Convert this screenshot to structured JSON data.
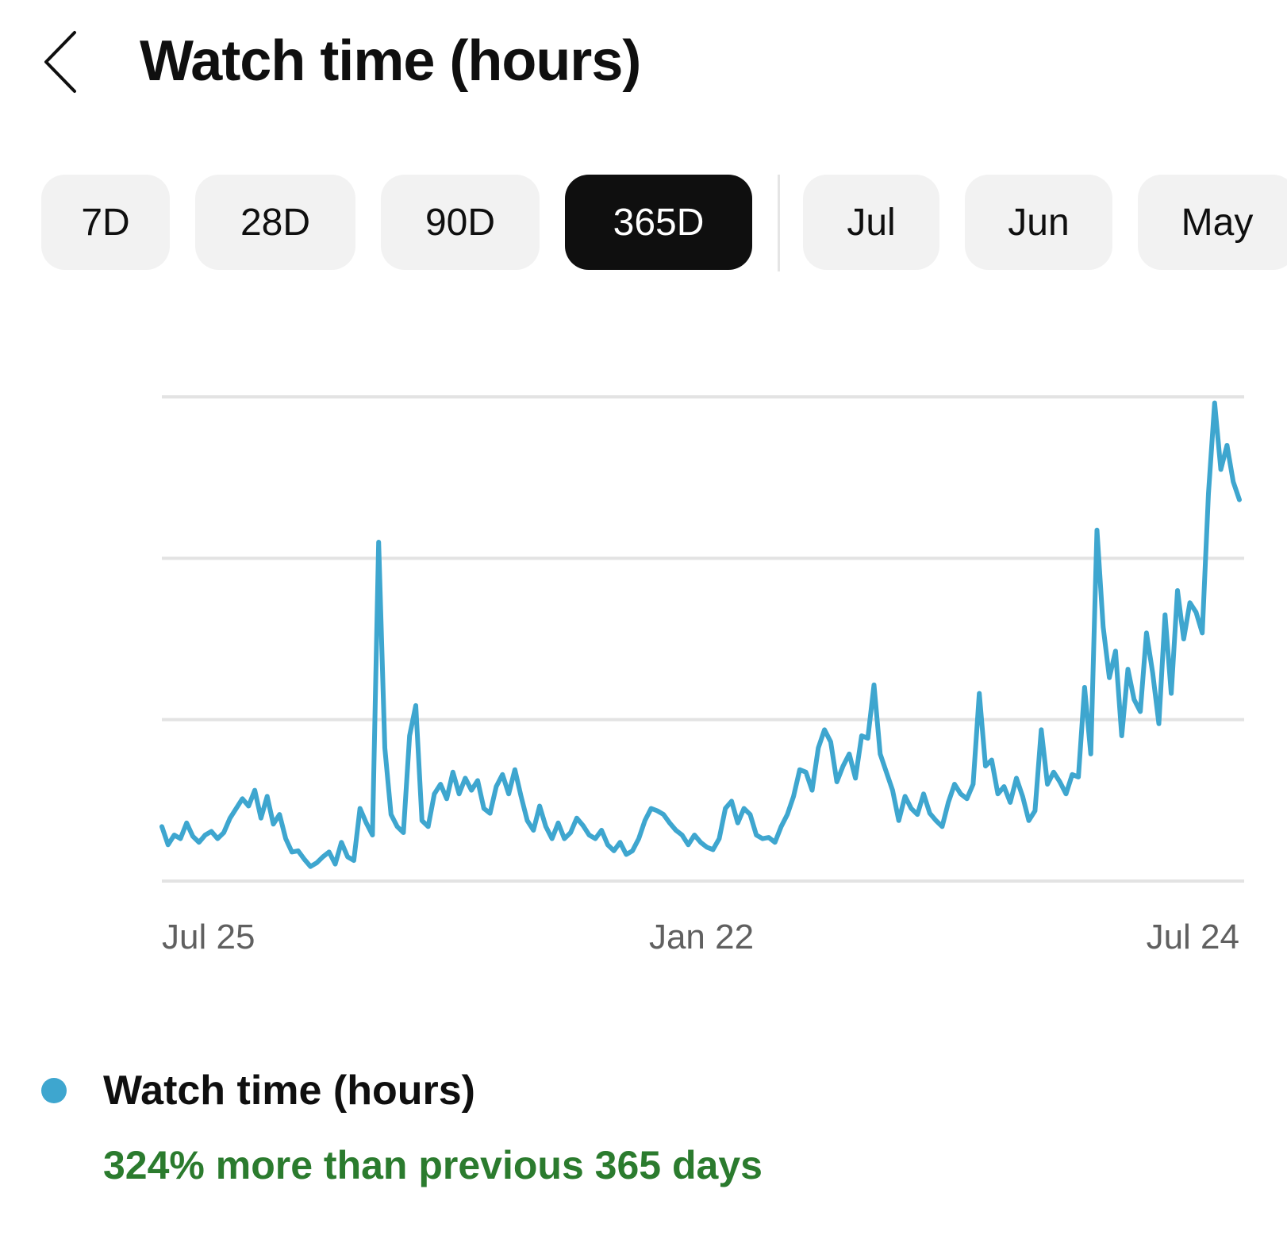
{
  "header": {
    "back_icon": "chevron-left-icon",
    "title": "Watch time (hours)"
  },
  "ranges": {
    "items": [
      {
        "label": "7D",
        "selected": false
      },
      {
        "label": "28D",
        "selected": false
      },
      {
        "label": "90D",
        "selected": false
      },
      {
        "label": "365D",
        "selected": true
      },
      {
        "label": "Jul",
        "selected": false
      },
      {
        "label": "Jun",
        "selected": false
      },
      {
        "label": "May",
        "selected": false
      }
    ]
  },
  "chart_data": {
    "type": "line",
    "x_tick_labels": [
      "Jul 25",
      "Jan 22",
      "Jul 24"
    ],
    "grid": true,
    "gridline_count": 4,
    "color": "#3ea6cf",
    "series": [
      {
        "name": "Watch time (hours)",
        "values": [
          0.45,
          0.3,
          0.38,
          0.35,
          0.48,
          0.37,
          0.32,
          0.38,
          0.41,
          0.35,
          0.4,
          0.52,
          0.6,
          0.68,
          0.62,
          0.75,
          0.52,
          0.7,
          0.47,
          0.55,
          0.35,
          0.24,
          0.25,
          0.18,
          0.12,
          0.15,
          0.2,
          0.24,
          0.14,
          0.32,
          0.2,
          0.17,
          0.6,
          0.48,
          0.38,
          2.8,
          1.1,
          0.55,
          0.45,
          0.4,
          1.2,
          1.45,
          0.5,
          0.45,
          0.72,
          0.8,
          0.68,
          0.9,
          0.72,
          0.85,
          0.75,
          0.83,
          0.6,
          0.56,
          0.78,
          0.88,
          0.72,
          0.92,
          0.7,
          0.5,
          0.42,
          0.62,
          0.45,
          0.35,
          0.48,
          0.35,
          0.4,
          0.52,
          0.46,
          0.38,
          0.35,
          0.42,
          0.3,
          0.25,
          0.32,
          0.22,
          0.25,
          0.35,
          0.5,
          0.6,
          0.58,
          0.55,
          0.48,
          0.42,
          0.38,
          0.3,
          0.38,
          0.32,
          0.28,
          0.26,
          0.35,
          0.6,
          0.66,
          0.48,
          0.6,
          0.55,
          0.38,
          0.35,
          0.36,
          0.32,
          0.45,
          0.55,
          0.7,
          0.92,
          0.9,
          0.75,
          1.1,
          1.25,
          1.15,
          0.82,
          0.95,
          1.05,
          0.85,
          1.2,
          1.18,
          1.62,
          1.05,
          0.9,
          0.75,
          0.5,
          0.7,
          0.6,
          0.55,
          0.72,
          0.56,
          0.5,
          0.45,
          0.65,
          0.8,
          0.72,
          0.68,
          0.8,
          1.55,
          0.95,
          1.0,
          0.72,
          0.78,
          0.65,
          0.85,
          0.7,
          0.5,
          0.58,
          1.25,
          0.8,
          0.9,
          0.82,
          0.72,
          0.88,
          0.86,
          1.6,
          1.05,
          2.9,
          2.1,
          1.68,
          1.9,
          1.2,
          1.75,
          1.5,
          1.4,
          2.05,
          1.72,
          1.3,
          2.2,
          1.55,
          2.4,
          2.0,
          2.3,
          2.22,
          2.05,
          3.2,
          3.95,
          3.4,
          3.6,
          3.3,
          3.15
        ]
      }
    ],
    "ylim": [
      0,
      4.0
    ]
  },
  "legend": {
    "dot_color": "#3ea6cf",
    "label": "Watch time (hours)"
  },
  "summary": {
    "comparison_text": "324% more than previous 365 days",
    "comparison_color": "#2b7b2e"
  }
}
